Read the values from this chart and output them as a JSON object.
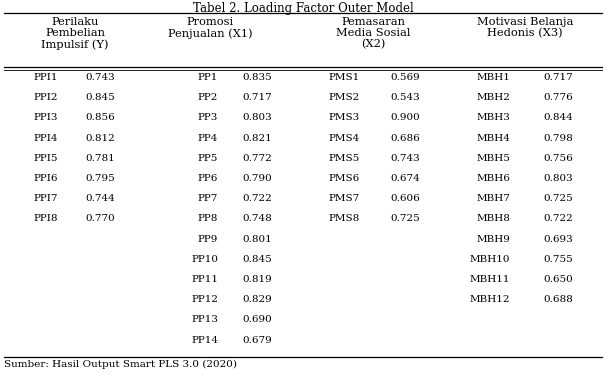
{
  "title": "Tabel 2. Loading Factor Outer Model",
  "footer": "Sumber: Hasil Output Smart PLS 3.0 (2020)",
  "ppi_data": [
    [
      "PPI1",
      "0.743"
    ],
    [
      "PPI2",
      "0.845"
    ],
    [
      "PPI3",
      "0.856"
    ],
    [
      "PPI4",
      "0.812"
    ],
    [
      "PPI5",
      "0.781"
    ],
    [
      "PPI6",
      "0.795"
    ],
    [
      "PPI7",
      "0.744"
    ],
    [
      "PPI8",
      "0.770"
    ]
  ],
  "pp_data": [
    [
      "PP1",
      "0.835"
    ],
    [
      "PP2",
      "0.717"
    ],
    [
      "PP3",
      "0.803"
    ],
    [
      "PP4",
      "0.821"
    ],
    [
      "PP5",
      "0.772"
    ],
    [
      "PP6",
      "0.790"
    ],
    [
      "PP7",
      "0.722"
    ],
    [
      "PP8",
      "0.748"
    ],
    [
      "PP9",
      "0.801"
    ],
    [
      "PP10",
      "0.845"
    ],
    [
      "PP11",
      "0.819"
    ],
    [
      "PP12",
      "0.829"
    ],
    [
      "PP13",
      "0.690"
    ],
    [
      "PP14",
      "0.679"
    ]
  ],
  "pms_data": [
    [
      "PMS1",
      "0.569"
    ],
    [
      "PMS2",
      "0.543"
    ],
    [
      "PMS3",
      "0.900"
    ],
    [
      "PMS4",
      "0.686"
    ],
    [
      "PMS5",
      "0.743"
    ],
    [
      "PMS6",
      "0.674"
    ],
    [
      "PMS7",
      "0.606"
    ],
    [
      "PMS8",
      "0.725"
    ]
  ],
  "mbh_data": [
    [
      "MBH1",
      "0.717"
    ],
    [
      "MBH2",
      "0.776"
    ],
    [
      "MBH3",
      "0.844"
    ],
    [
      "MBH4",
      "0.798"
    ],
    [
      "MBH5",
      "0.756"
    ],
    [
      "MBH6",
      "0.803"
    ],
    [
      "MBH7",
      "0.725"
    ],
    [
      "MBH8",
      "0.722"
    ],
    [
      "MBH9",
      "0.693"
    ],
    [
      "MBH10",
      "0.755"
    ],
    [
      "MBH11",
      "0.650"
    ],
    [
      "MBH12",
      "0.688"
    ]
  ],
  "bg_color": "#ffffff",
  "text_color": "#000000",
  "font_size": 7.5,
  "header_font_size": 8.2,
  "title_font_size": 8.5
}
